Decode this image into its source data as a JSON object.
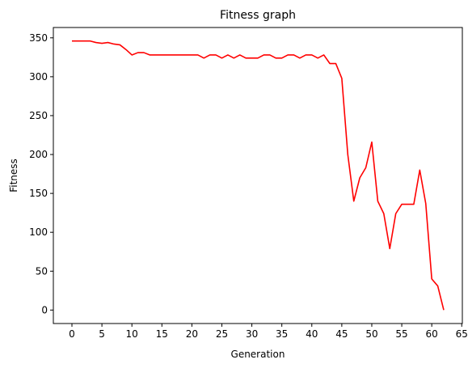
{
  "chart_data": {
    "type": "line",
    "title": "Fitness graph",
    "xlabel": "Generation",
    "ylabel": "Fitness",
    "xlim": [
      -3.1,
      65.1
    ],
    "ylim": [
      -17.3,
      363.3
    ],
    "xticks": [
      0,
      5,
      10,
      15,
      20,
      25,
      30,
      35,
      40,
      45,
      50,
      55,
      60,
      65
    ],
    "yticks": [
      0,
      50,
      100,
      150,
      200,
      250,
      300,
      350
    ],
    "grid": false,
    "legend": "none",
    "series": [
      {
        "color": "#ff0000",
        "x": [
          0,
          1,
          2,
          3,
          4,
          5,
          6,
          7,
          8,
          9,
          10,
          11,
          12,
          13,
          14,
          15,
          16,
          17,
          18,
          19,
          20,
          21,
          22,
          23,
          24,
          25,
          26,
          27,
          28,
          29,
          30,
          31,
          32,
          33,
          34,
          35,
          36,
          37,
          38,
          39,
          40,
          41,
          42,
          43,
          44,
          45,
          46,
          47,
          48,
          49,
          50,
          51,
          52,
          53,
          54,
          55,
          56,
          57,
          58,
          59,
          60,
          61,
          62
        ],
        "values": [
          346,
          346,
          346,
          346,
          344,
          343,
          344,
          342,
          341,
          335,
          328,
          331,
          331,
          328,
          328,
          328,
          328,
          328,
          328,
          328,
          328,
          328,
          324,
          328,
          328,
          324,
          328,
          324,
          328,
          324,
          324,
          324,
          328,
          328,
          324,
          324,
          328,
          328,
          324,
          328,
          328,
          324,
          328,
          317,
          317,
          298,
          200,
          140,
          170,
          183,
          216,
          140,
          124,
          79,
          124,
          136,
          136,
          136,
          180,
          137,
          40,
          31,
          0
        ]
      }
    ]
  }
}
